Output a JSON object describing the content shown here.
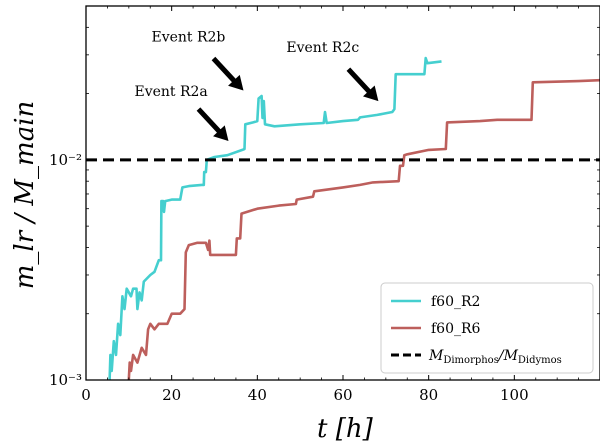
{
  "chart_data": {
    "type": "line",
    "xlabel": "t [h]",
    "ylabel": "m_lr / M_main",
    "xlim": [
      0,
      120
    ],
    "ylim": [
      0.001,
      0.05
    ],
    "yscale": "log",
    "grid": false,
    "legend_position": "lower-right",
    "x_ticks": [
      0,
      20,
      40,
      60,
      80,
      100
    ],
    "y_ticks": [
      {
        "value": 0.001,
        "label": "10⁻³"
      },
      {
        "value": 0.01,
        "label": "10⁻²"
      }
    ],
    "reference_line": {
      "y": 0.01,
      "label": "M_Dimorphos / M_Didymos",
      "color": "#000000",
      "style": "dashed"
    },
    "series": [
      {
        "name": "f60_R2",
        "color": "#45cfcf",
        "points": [
          [
            5.5,
            0.001
          ],
          [
            5.7,
            0.0013
          ],
          [
            6.0,
            0.0011
          ],
          [
            6.5,
            0.0015
          ],
          [
            7.0,
            0.0013
          ],
          [
            7.5,
            0.0018
          ],
          [
            8.0,
            0.0016
          ],
          [
            8.5,
            0.0024
          ],
          [
            9.0,
            0.0021
          ],
          [
            9.5,
            0.0026
          ],
          [
            10.5,
            0.0024
          ],
          [
            11.0,
            0.0026
          ],
          [
            11.8,
            0.0026
          ],
          [
            12.0,
            0.0021
          ],
          [
            12.5,
            0.0025
          ],
          [
            13.0,
            0.0023
          ],
          [
            13.5,
            0.0028
          ],
          [
            15.0,
            0.003
          ],
          [
            16.0,
            0.0031
          ],
          [
            17.0,
            0.0035
          ],
          [
            17.5,
            0.0035
          ],
          [
            17.6,
            0.0065
          ],
          [
            18.0,
            0.0065
          ],
          [
            18.2,
            0.0058
          ],
          [
            18.5,
            0.0065
          ],
          [
            20.0,
            0.0066
          ],
          [
            22.0,
            0.0066
          ],
          [
            22.5,
            0.0075
          ],
          [
            24.0,
            0.0076
          ],
          [
            27.0,
            0.0077
          ],
          [
            27.5,
            0.0077
          ],
          [
            27.6,
            0.0088
          ],
          [
            28.0,
            0.0088
          ],
          [
            28.2,
            0.01
          ],
          [
            30.0,
            0.0103
          ],
          [
            33.0,
            0.0105
          ],
          [
            36.5,
            0.0111
          ],
          [
            37.0,
            0.0112
          ],
          [
            37.2,
            0.0145
          ],
          [
            39.0,
            0.0148
          ],
          [
            40.0,
            0.015
          ],
          [
            40.3,
            0.019
          ],
          [
            41.0,
            0.0195
          ],
          [
            41.2,
            0.0155
          ],
          [
            41.5,
            0.0185
          ],
          [
            41.8,
            0.0145
          ],
          [
            44.0,
            0.0142
          ],
          [
            50.0,
            0.0145
          ],
          [
            55.5,
            0.0147
          ],
          [
            55.8,
            0.0165
          ],
          [
            56.2,
            0.0147
          ],
          [
            60.0,
            0.015
          ],
          [
            63.5,
            0.0152
          ],
          [
            64.0,
            0.0156
          ],
          [
            68.0,
            0.016
          ],
          [
            71.5,
            0.0165
          ],
          [
            72.0,
            0.017
          ],
          [
            72.3,
            0.0245
          ],
          [
            75.0,
            0.0245
          ],
          [
            79.0,
            0.0245
          ],
          [
            79.3,
            0.029
          ],
          [
            79.7,
            0.0275
          ],
          [
            83.0,
            0.028
          ]
        ]
      },
      {
        "name": "f60_R6",
        "color": "#bd5f5c",
        "points": [
          [
            10.0,
            0.001
          ],
          [
            10.2,
            0.0012
          ],
          [
            10.5,
            0.0011
          ],
          [
            11.0,
            0.0013
          ],
          [
            12.0,
            0.0012
          ],
          [
            13.0,
            0.0014
          ],
          [
            14.0,
            0.0013
          ],
          [
            14.5,
            0.0017
          ],
          [
            15.0,
            0.0018
          ],
          [
            16.0,
            0.0017
          ],
          [
            17.0,
            0.0018
          ],
          [
            19.0,
            0.0018
          ],
          [
            20.0,
            0.002
          ],
          [
            22.0,
            0.002
          ],
          [
            23.0,
            0.0021
          ],
          [
            23.3,
            0.0038
          ],
          [
            24.0,
            0.0041
          ],
          [
            26.0,
            0.0042
          ],
          [
            28.0,
            0.0042
          ],
          [
            28.5,
            0.0039
          ],
          [
            28.8,
            0.0043
          ],
          [
            29.0,
            0.0037
          ],
          [
            30.0,
            0.0037
          ],
          [
            35.0,
            0.0037
          ],
          [
            35.2,
            0.0044
          ],
          [
            36.0,
            0.0044
          ],
          [
            36.3,
            0.0057
          ],
          [
            40.0,
            0.006
          ],
          [
            45.0,
            0.0062
          ],
          [
            49.0,
            0.0063
          ],
          [
            49.2,
            0.0066
          ],
          [
            53.0,
            0.0068
          ],
          [
            53.3,
            0.0072
          ],
          [
            60.0,
            0.0075
          ],
          [
            64.0,
            0.0077
          ],
          [
            67.0,
            0.0079
          ],
          [
            73.0,
            0.008
          ],
          [
            73.3,
            0.0094
          ],
          [
            74.0,
            0.0094
          ],
          [
            74.3,
            0.0105
          ],
          [
            75.0,
            0.0106
          ],
          [
            80.0,
            0.0111
          ],
          [
            84.0,
            0.0112
          ],
          [
            84.3,
            0.0148
          ],
          [
            92.0,
            0.015
          ],
          [
            96.0,
            0.0152
          ],
          [
            104.0,
            0.0152
          ],
          [
            104.3,
            0.0225
          ],
          [
            115.0,
            0.0228
          ],
          [
            120.0,
            0.023
          ]
        ]
      }
    ],
    "annotations": [
      {
        "text": "Event R2a",
        "x": 37.0,
        "y": 0.0112
      },
      {
        "text": "Event R2b",
        "x": 40.5,
        "y": 0.019
      },
      {
        "text": "Event R2c",
        "x": 72.0,
        "y": 0.017
      }
    ]
  }
}
